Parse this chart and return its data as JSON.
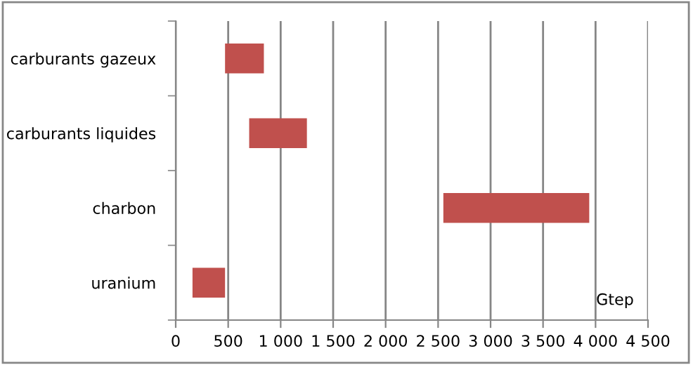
{
  "chart_data": {
    "type": "bar",
    "orientation": "horizontal",
    "categories": [
      "carburants gazeux",
      "carburants liquides",
      "charbon",
      "uranium"
    ],
    "base": [
      470,
      700,
      2550,
      160
    ],
    "values": [
      370,
      550,
      1390,
      310
    ],
    "color": "#c0504d",
    "xlim": [
      0,
      4500
    ],
    "xticks": [
      0,
      {
        "value": 500,
        "label": "500"
      },
      {
        "value": 1000,
        "label": "1 000"
      },
      {
        "value": 1500,
        "label": "1 500"
      },
      {
        "value": 2000,
        "label": "2 000"
      },
      {
        "value": 2500,
        "label": "2 500"
      },
      {
        "value": 3000,
        "label": "3 000"
      },
      {
        "value": 3500,
        "label": "3 500"
      },
      {
        "value": 4000,
        "label": "4 000"
      },
      {
        "value": 4500,
        "label": "4 500"
      }
    ],
    "grid": "x",
    "annotations": [
      "Gtep"
    ]
  }
}
